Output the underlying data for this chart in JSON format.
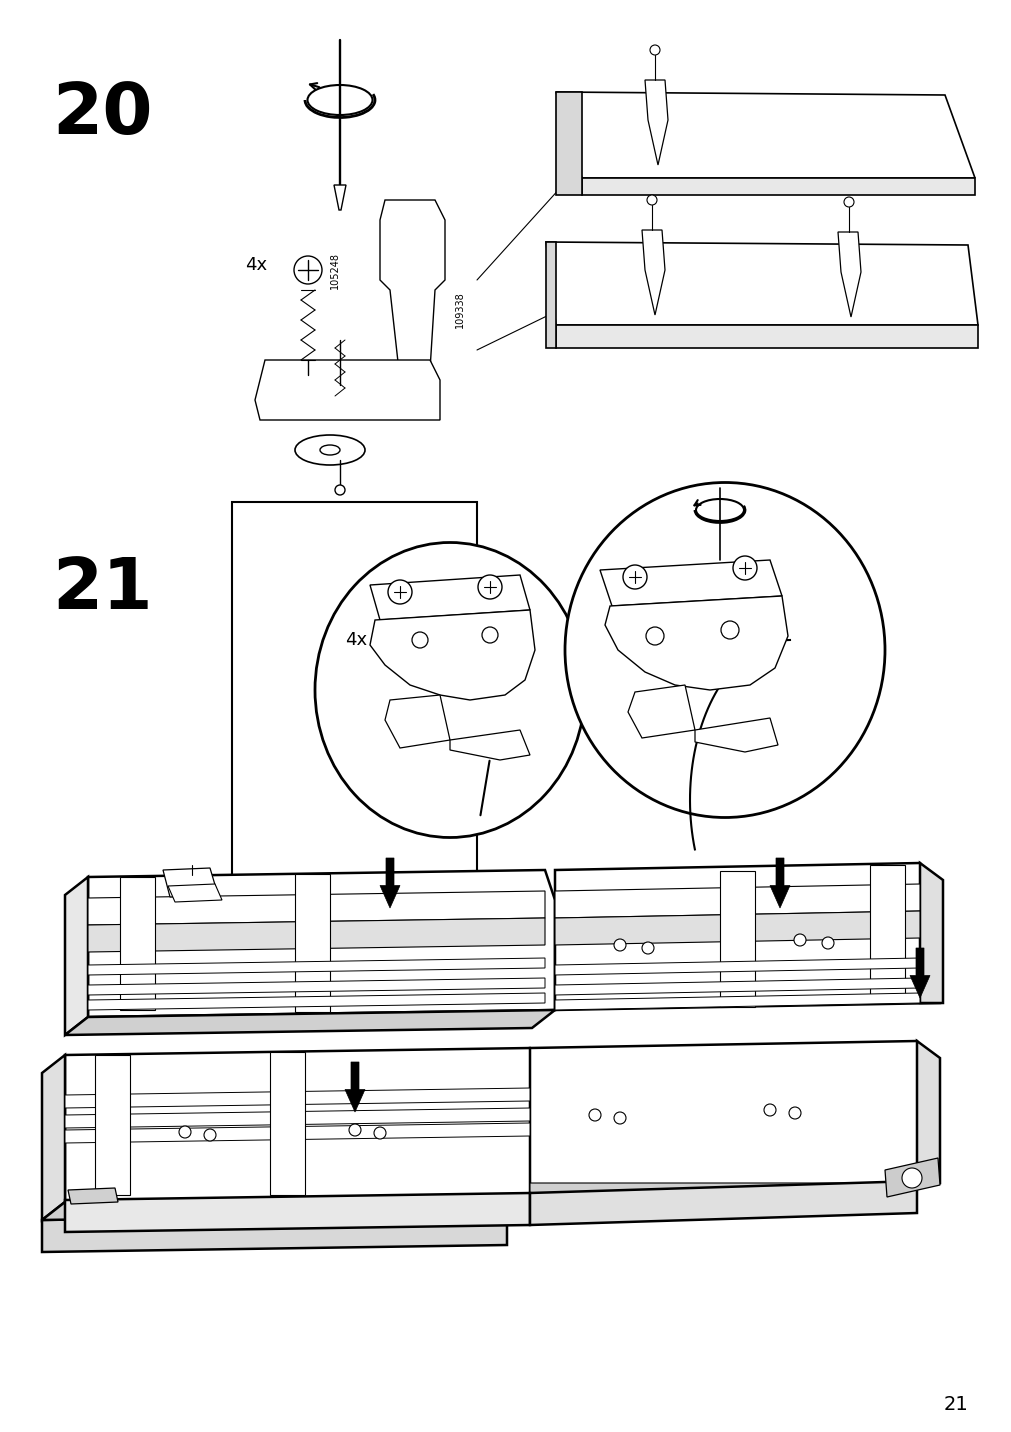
{
  "page_number": "21",
  "step_numbers": [
    "20",
    "21"
  ],
  "step20_label_4x": "4x",
  "step21_label_4x": "4x",
  "part_ids": [
    "105248",
    "109338"
  ],
  "bg_color": "#ffffff",
  "line_color": "#000000",
  "lw_thin": 0.8,
  "lw_main": 1.2,
  "lw_thick": 1.8,
  "lw_bold": 2.5
}
